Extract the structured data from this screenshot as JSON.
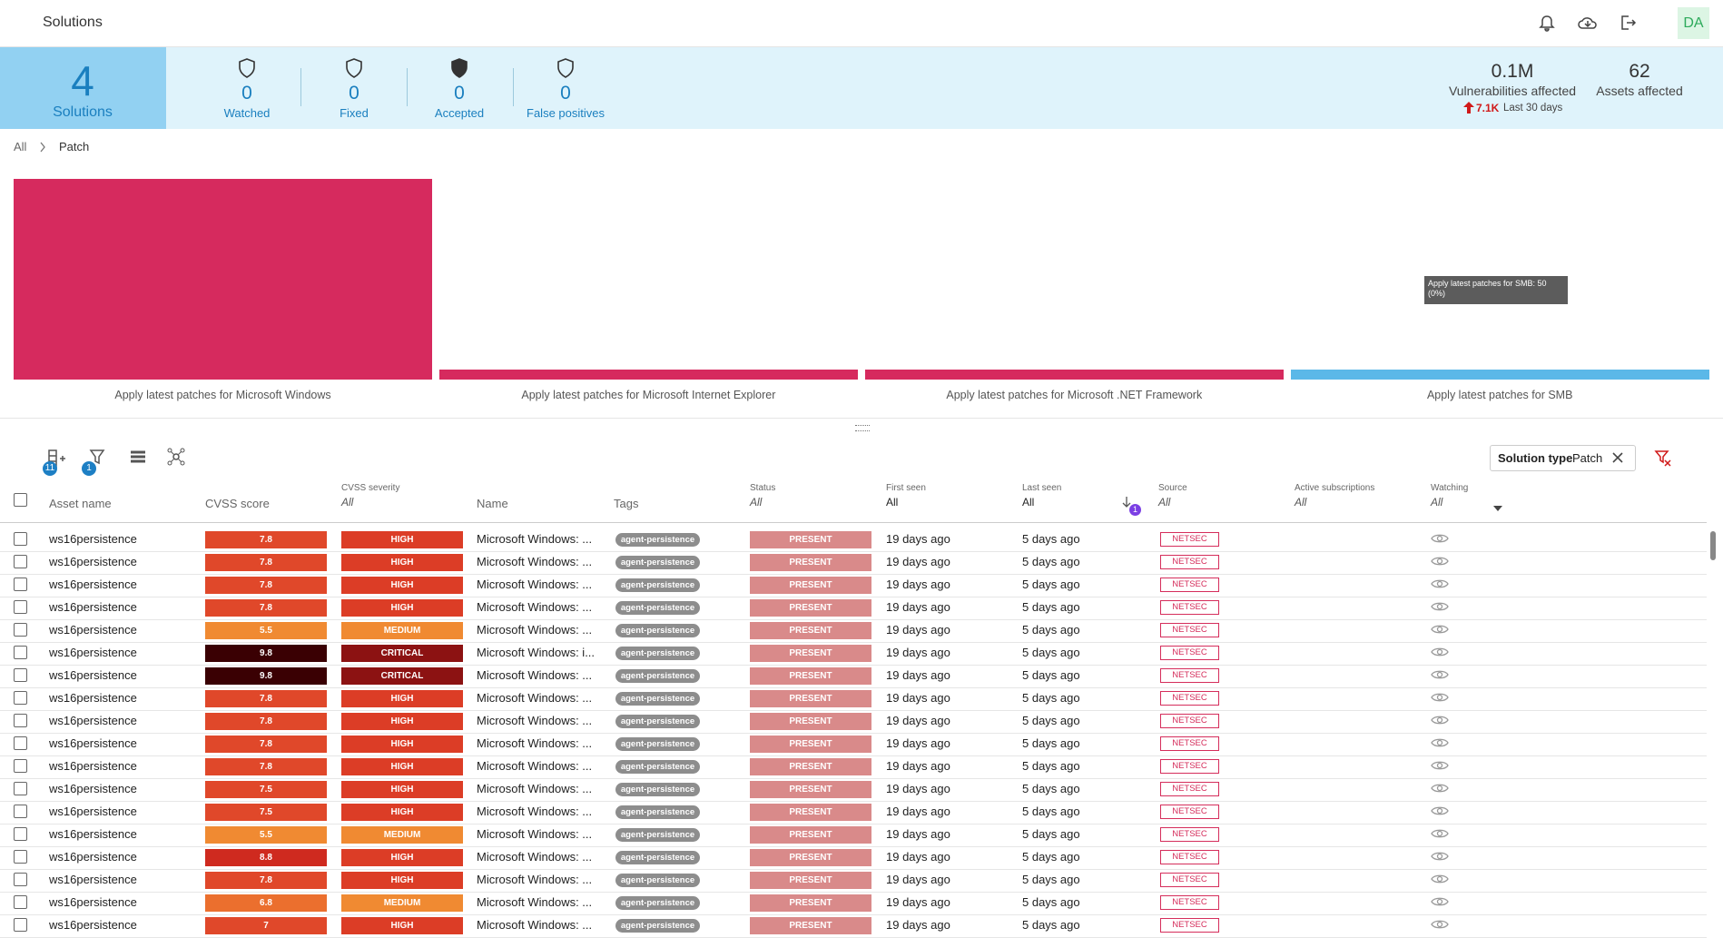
{
  "header": {
    "title": "Solutions",
    "avatar": "DA"
  },
  "summary": {
    "total": 4,
    "total_label": "Solutions",
    "stats": [
      {
        "value": 0,
        "label": "Watched"
      },
      {
        "value": 0,
        "label": "Fixed"
      },
      {
        "value": 0,
        "label": "Accepted"
      },
      {
        "value": 0,
        "label": "False positives"
      }
    ],
    "vulnerabilities": "0.1M",
    "vulnerabilities_label": "Vulnerabilities affected",
    "trend": "7.1K",
    "trend_label": "Last 30 days",
    "assets": 62,
    "assets_label": "Assets affected"
  },
  "breadcrumb": [
    "All",
    "Patch"
  ],
  "chart_data": {
    "type": "bar",
    "categories": [
      "Apply latest patches for Microsoft Windows",
      "Apply latest patches for Microsoft Internet Explorer",
      "Apply latest patches for Microsoft .NET Framework",
      "Apply latest patches for SMB"
    ],
    "values": [
      1000,
      50,
      50,
      50
    ],
    "colors": [
      "#d62a5e",
      "#d62a5e",
      "#d62a5e",
      "#5bb8e8"
    ],
    "tooltip": "Apply latest patches for SMB: 50 (0%)"
  },
  "toolbar": {
    "columns_badge": 11,
    "filter_badge": 1,
    "sort_badge": 1,
    "chip_label": "Solution type",
    "chip_value": "Patch"
  },
  "table": {
    "columns": [
      {
        "label": "Asset name"
      },
      {
        "label": "CVSS score"
      },
      {
        "label": "CVSS severity",
        "filter": "All"
      },
      {
        "label": "Name"
      },
      {
        "label": "Tags"
      },
      {
        "label": "Status",
        "filter": "All"
      },
      {
        "label": "First seen",
        "filter": "All"
      },
      {
        "label": "Last seen",
        "filter": "All"
      },
      {
        "label": "Source",
        "filter": "All"
      },
      {
        "label": "Active subscriptions",
        "filter": "All"
      },
      {
        "label": "Watching",
        "filter": "All"
      }
    ],
    "rows": [
      [
        "ws16persistence",
        7.8,
        "HIGH",
        "Microsoft Windows: ...",
        "agent-persistence",
        "PRESENT",
        "19 days ago",
        "5 days ago",
        "NETSEC"
      ],
      [
        "ws16persistence",
        7.8,
        "HIGH",
        "Microsoft Windows: ...",
        "agent-persistence",
        "PRESENT",
        "19 days ago",
        "5 days ago",
        "NETSEC"
      ],
      [
        "ws16persistence",
        7.8,
        "HIGH",
        "Microsoft Windows: ...",
        "agent-persistence",
        "PRESENT",
        "19 days ago",
        "5 days ago",
        "NETSEC"
      ],
      [
        "ws16persistence",
        7.8,
        "HIGH",
        "Microsoft Windows: ...",
        "agent-persistence",
        "PRESENT",
        "19 days ago",
        "5 days ago",
        "NETSEC"
      ],
      [
        "ws16persistence",
        5.5,
        "MEDIUM",
        "Microsoft Windows: ...",
        "agent-persistence",
        "PRESENT",
        "19 days ago",
        "5 days ago",
        "NETSEC"
      ],
      [
        "ws16persistence",
        9.8,
        "CRITICAL",
        "Microsoft Windows: i...",
        "agent-persistence",
        "PRESENT",
        "19 days ago",
        "5 days ago",
        "NETSEC"
      ],
      [
        "ws16persistence",
        9.8,
        "CRITICAL",
        "Microsoft Windows: ...",
        "agent-persistence",
        "PRESENT",
        "19 days ago",
        "5 days ago",
        "NETSEC"
      ],
      [
        "ws16persistence",
        7.8,
        "HIGH",
        "Microsoft Windows: ...",
        "agent-persistence",
        "PRESENT",
        "19 days ago",
        "5 days ago",
        "NETSEC"
      ],
      [
        "ws16persistence",
        7.8,
        "HIGH",
        "Microsoft Windows: ...",
        "agent-persistence",
        "PRESENT",
        "19 days ago",
        "5 days ago",
        "NETSEC"
      ],
      [
        "ws16persistence",
        7.8,
        "HIGH",
        "Microsoft Windows: ...",
        "agent-persistence",
        "PRESENT",
        "19 days ago",
        "5 days ago",
        "NETSEC"
      ],
      [
        "ws16persistence",
        7.8,
        "HIGH",
        "Microsoft Windows: ...",
        "agent-persistence",
        "PRESENT",
        "19 days ago",
        "5 days ago",
        "NETSEC"
      ],
      [
        "ws16persistence",
        7.5,
        "HIGH",
        "Microsoft Windows: ...",
        "agent-persistence",
        "PRESENT",
        "19 days ago",
        "5 days ago",
        "NETSEC"
      ],
      [
        "ws16persistence",
        7.5,
        "HIGH",
        "Microsoft Windows: ...",
        "agent-persistence",
        "PRESENT",
        "19 days ago",
        "5 days ago",
        "NETSEC"
      ],
      [
        "ws16persistence",
        5.5,
        "MEDIUM",
        "Microsoft Windows: ...",
        "agent-persistence",
        "PRESENT",
        "19 days ago",
        "5 days ago",
        "NETSEC"
      ],
      [
        "ws16persistence",
        8.8,
        "HIGH",
        "Microsoft Windows: ...",
        "agent-persistence",
        "PRESENT",
        "19 days ago",
        "5 days ago",
        "NETSEC"
      ],
      [
        "ws16persistence",
        7.8,
        "HIGH",
        "Microsoft Windows: ...",
        "agent-persistence",
        "PRESENT",
        "19 days ago",
        "5 days ago",
        "NETSEC"
      ],
      [
        "ws16persistence",
        6.8,
        "MEDIUM",
        "Microsoft Windows: ...",
        "agent-persistence",
        "PRESENT",
        "19 days ago",
        "5 days ago",
        "NETSEC"
      ],
      [
        "ws16persistence",
        7,
        "HIGH",
        "Microsoft Windows: ...",
        "agent-persistence",
        "PRESENT",
        "19 days ago",
        "5 days ago",
        "NETSEC"
      ]
    ]
  }
}
